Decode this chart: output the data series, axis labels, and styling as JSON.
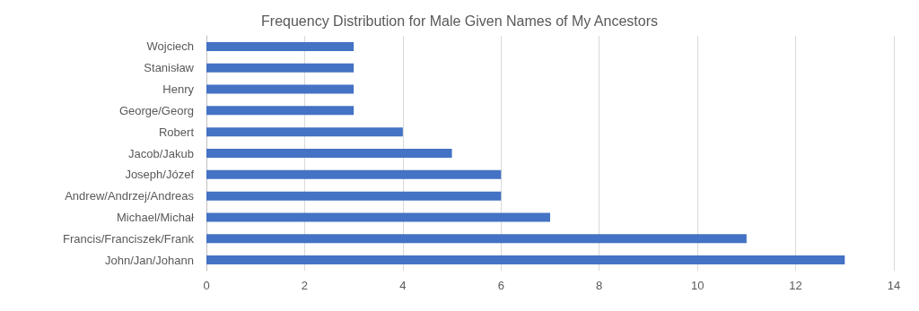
{
  "chart_data": {
    "type": "bar",
    "orientation": "horizontal",
    "title": "Frequency Distribution for Male Given Names of My Ancestors",
    "categories": [
      "Wojciech",
      "Stanisław",
      "Henry",
      "George/Georg",
      "Robert",
      "Jacob/Jakub",
      "Joseph/Józef",
      "Andrew/Andrzej/Andreas",
      "Michael/Michał",
      "Francis/Franciszek/Frank",
      "John/Jan/Johann"
    ],
    "values": [
      3,
      3,
      3,
      3,
      4,
      5,
      6,
      6,
      7,
      11,
      13
    ],
    "color": "#4472c4",
    "xlim": [
      0,
      14
    ],
    "xticks": [
      0,
      2,
      4,
      6,
      8,
      10,
      12,
      14
    ],
    "grid": "x"
  }
}
